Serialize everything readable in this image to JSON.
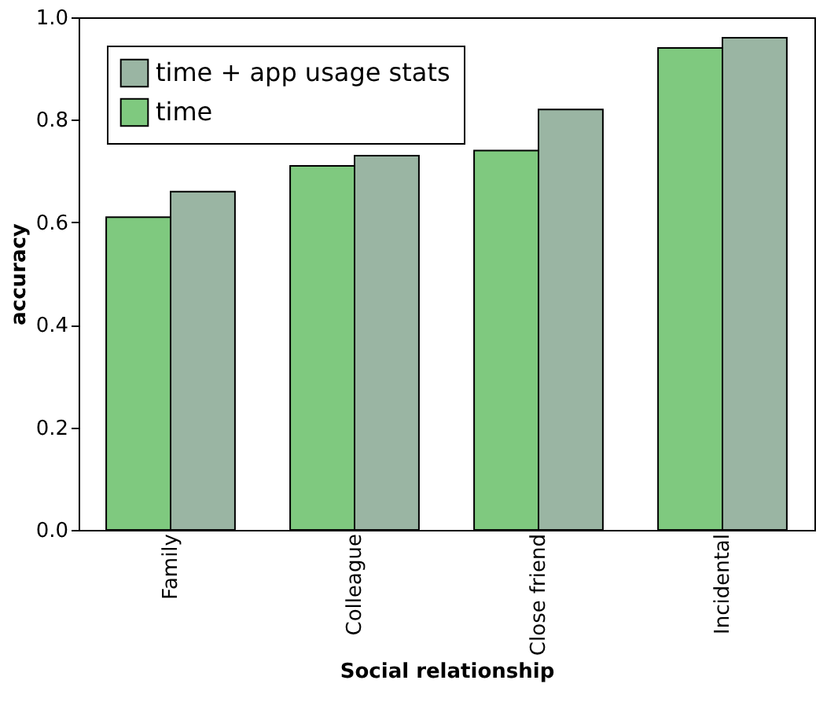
{
  "chart_data": {
    "type": "bar",
    "xlabel": "Social relationship",
    "ylabel": "accuracy",
    "categories": [
      "Family",
      "Colleague",
      "Close friend",
      "Incidental"
    ],
    "series": [
      {
        "name": "time",
        "color": "#7fc97f",
        "values": [
          0.61,
          0.71,
          0.74,
          0.94
        ]
      },
      {
        "name": "time + app usage stats",
        "color": "#9ab5a3",
        "values": [
          0.66,
          0.73,
          0.82,
          0.96
        ]
      }
    ],
    "ylim": [
      0,
      1
    ],
    "yticks": [
      {
        "value": 0,
        "label": "0.0"
      },
      {
        "value": 0.2,
        "label": "0.2"
      },
      {
        "value": 0.4,
        "label": "0.4"
      },
      {
        "value": 0.6,
        "label": "0.6"
      },
      {
        "value": 0.8,
        "label": "0.8"
      },
      {
        "value": 1,
        "label": "1.0"
      }
    ],
    "grid": false,
    "legend": "top left"
  }
}
